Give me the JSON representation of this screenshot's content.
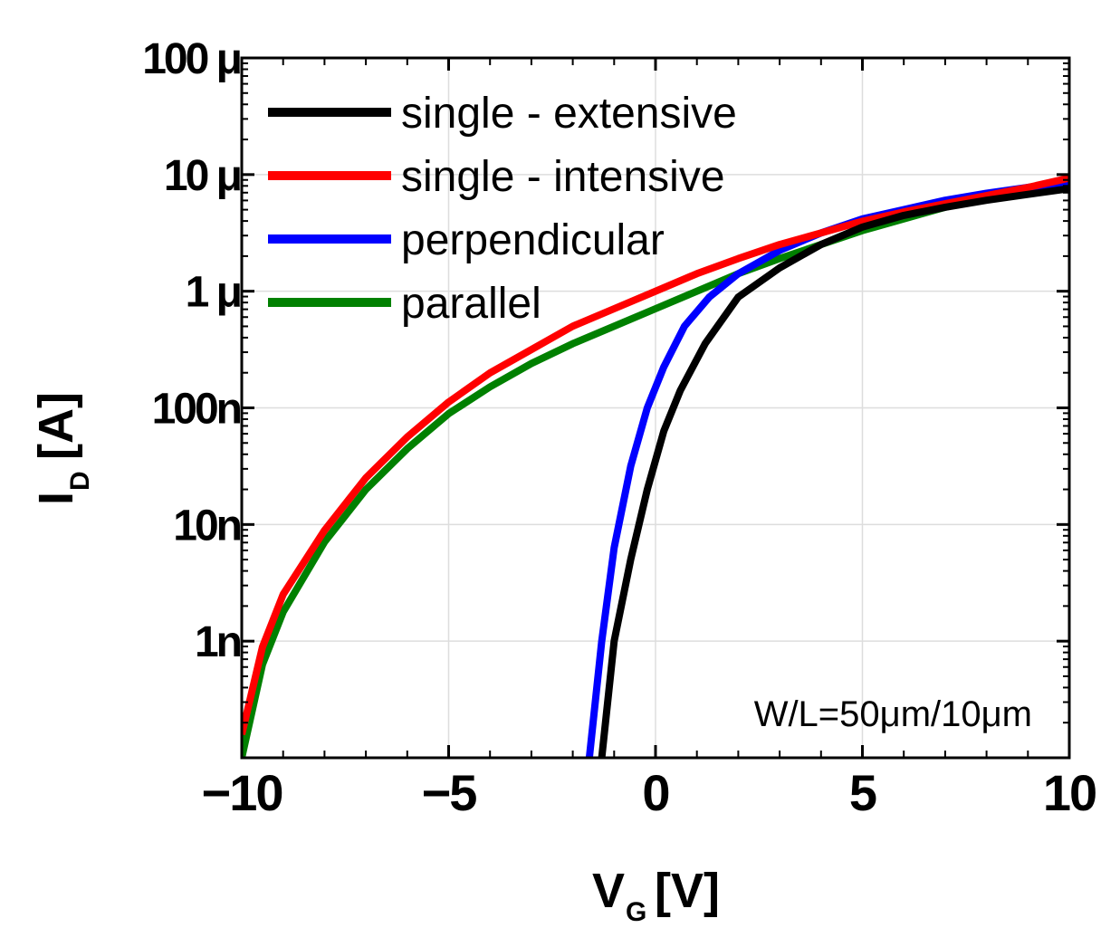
{
  "chart_data": {
    "type": "line",
    "title": "",
    "xlabel": {
      "main": "V",
      "sub": "G",
      "unit": "[V]"
    },
    "ylabel": {
      "main": "I",
      "sub": "D",
      "unit": "[A]"
    },
    "xlim": [
      -10,
      10
    ],
    "ylim_log10": [
      -10,
      -4
    ],
    "y_scale": "log",
    "grid": true,
    "legend_position": "top-left",
    "x_ticks": [
      {
        "value": -10,
        "label": "−10"
      },
      {
        "value": -5,
        "label": "−5"
      },
      {
        "value": 0,
        "label": "0"
      },
      {
        "value": 5,
        "label": "5"
      },
      {
        "value": 10,
        "label": "10"
      }
    ],
    "y_ticks": [
      {
        "log": -9,
        "label": "1n"
      },
      {
        "log": -8,
        "label": "10n"
      },
      {
        "log": -7,
        "label": "100n"
      },
      {
        "log": -6,
        "label": "1 μ"
      },
      {
        "log": -5,
        "label": "10 μ"
      },
      {
        "log": -4,
        "label": "100 μ"
      }
    ],
    "annotation": "W/L=50μm/10μm",
    "series": [
      {
        "name": "single - extensive",
        "color": "#000000",
        "x": [
          -1.3,
          -1.0,
          -0.6,
          -0.2,
          0.2,
          0.6,
          1.2,
          2.0,
          3.0,
          4.0,
          5.0,
          6.0,
          7.0,
          8.0,
          9.0,
          10.0
        ],
        "log": [
          -10.0,
          -9.0,
          -8.3,
          -7.7,
          -7.2,
          -6.85,
          -6.45,
          -6.05,
          -5.8,
          -5.6,
          -5.45,
          -5.35,
          -5.28,
          -5.22,
          -5.17,
          -5.12
        ]
      },
      {
        "name": "single - intensive",
        "color": "#ff0000",
        "x": [
          -10.0,
          -9.5,
          -9.0,
          -8.0,
          -7.0,
          -6.0,
          -5.0,
          -4.0,
          -3.0,
          -2.0,
          -1.0,
          0.0,
          1.0,
          2.0,
          3.0,
          4.0,
          5.0,
          6.0,
          7.0,
          8.0,
          9.0,
          10.0
        ],
        "log": [
          -9.8,
          -9.05,
          -8.6,
          -8.05,
          -7.6,
          -7.25,
          -6.95,
          -6.7,
          -6.5,
          -6.3,
          -6.15,
          -6.0,
          -5.85,
          -5.72,
          -5.6,
          -5.5,
          -5.4,
          -5.32,
          -5.25,
          -5.18,
          -5.11,
          -5.03
        ]
      },
      {
        "name": "perpendicular",
        "color": "#0000ff",
        "x": [
          -1.6,
          -1.3,
          -1.0,
          -0.6,
          -0.2,
          0.2,
          0.7,
          1.3,
          2.0,
          3.0,
          4.0,
          5.0,
          6.0,
          7.0,
          8.0,
          9.0,
          10.0
        ],
        "log": [
          -10.0,
          -9.0,
          -8.2,
          -7.5,
          -7.0,
          -6.65,
          -6.3,
          -6.05,
          -5.85,
          -5.65,
          -5.5,
          -5.38,
          -5.3,
          -5.22,
          -5.16,
          -5.11,
          -5.06
        ]
      },
      {
        "name": "parallel",
        "color": "#008000",
        "x": [
          -10.0,
          -9.5,
          -9.0,
          -8.0,
          -7.0,
          -6.0,
          -5.0,
          -4.0,
          -3.0,
          -2.0,
          -1.0,
          0.0,
          1.0,
          2.0,
          3.0,
          4.0,
          5.0,
          6.0,
          7.0,
          8.0,
          9.0,
          10.0
        ],
        "log": [
          -10.0,
          -9.2,
          -8.75,
          -8.15,
          -7.7,
          -7.35,
          -7.05,
          -6.82,
          -6.62,
          -6.45,
          -6.3,
          -6.15,
          -6.0,
          -5.85,
          -5.72,
          -5.6,
          -5.48,
          -5.38,
          -5.28,
          -5.2,
          -5.13,
          -5.06
        ]
      }
    ]
  }
}
